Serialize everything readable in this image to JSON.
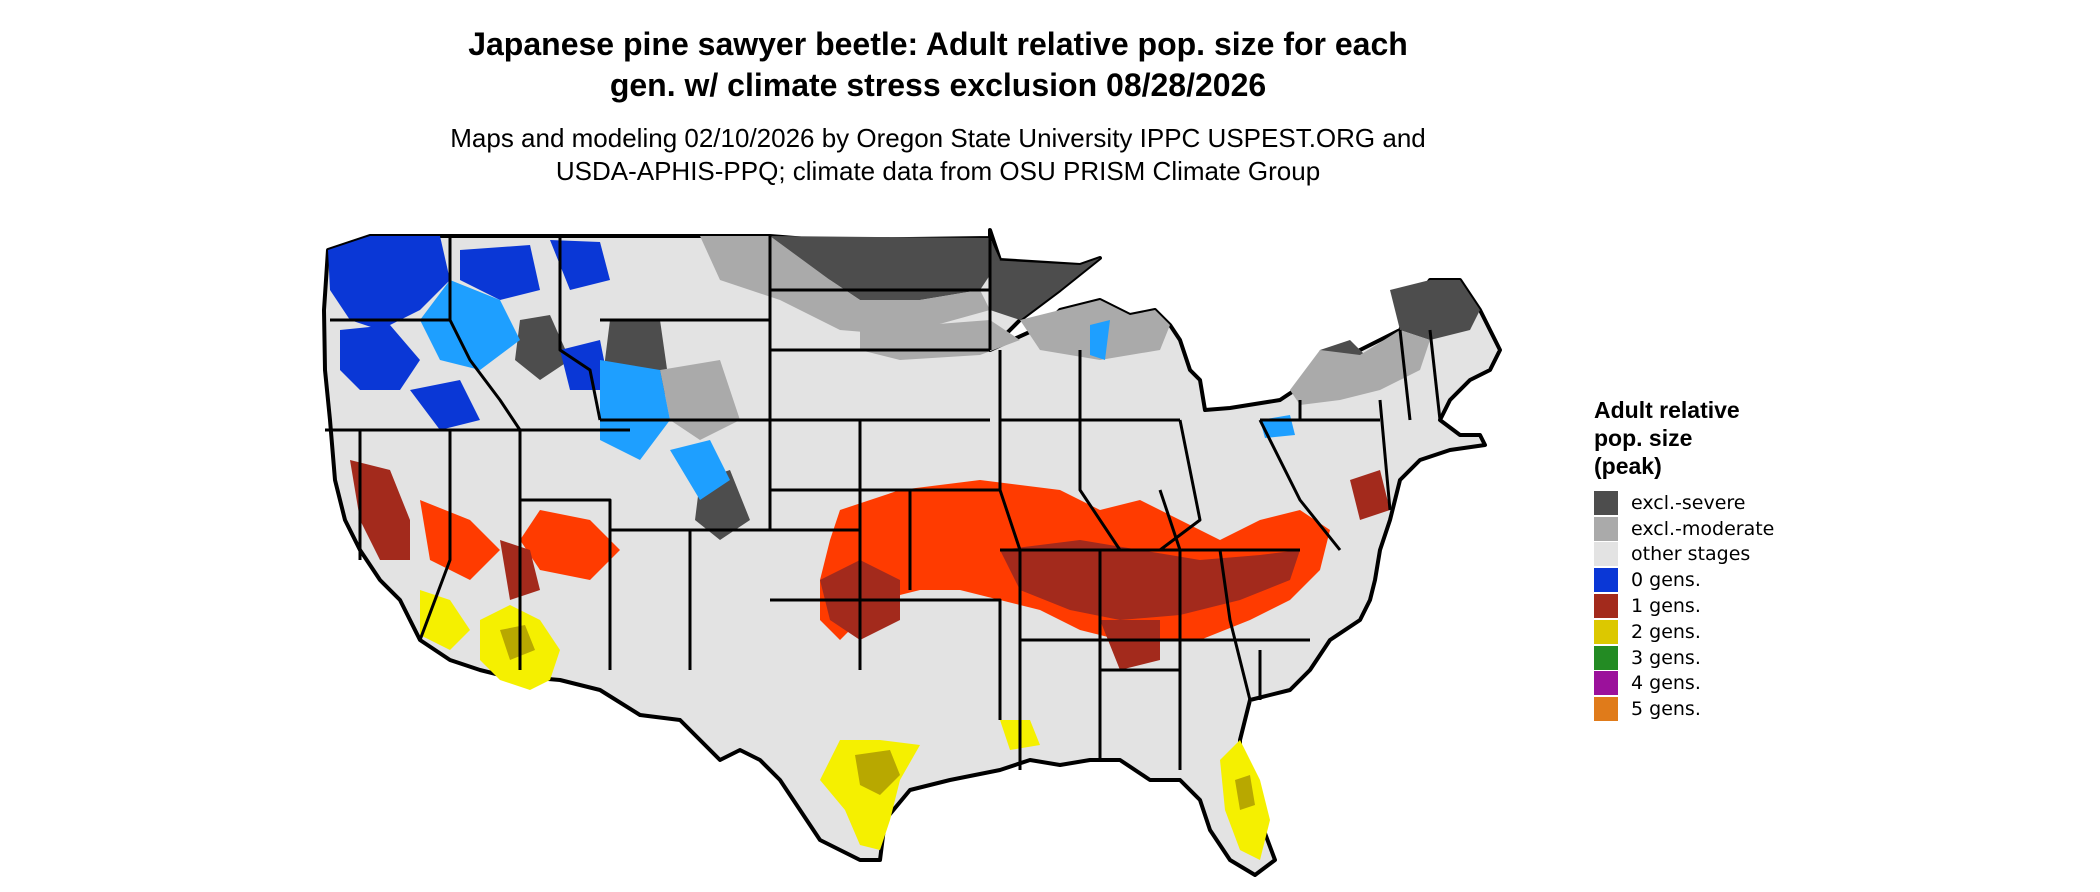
{
  "title": {
    "line1": "Japanese pine sawyer beetle: Adult relative pop. size for each",
    "line2": "gen. w/ climate stress exclusion 08/28/2026"
  },
  "subtitle": {
    "line1": "Maps and modeling 02/10/2026 by Oregon State University IPPC USPEST.ORG and",
    "line2": "USDA-APHIS-PPQ; climate data from OSU PRISM Climate Group"
  },
  "legend": {
    "title_line1": "Adult relative",
    "title_line2": "pop. size",
    "title_line3": "(peak)",
    "items": [
      {
        "label": "excl.-severe",
        "color": "#4d4d4d"
      },
      {
        "label": "excl.-moderate",
        "color": "#aaaaaa"
      },
      {
        "label": "other stages",
        "color": "#e3e3e3"
      },
      {
        "label": "0 gens.",
        "color": "#0a37d6"
      },
      {
        "label": "1 gens.",
        "color": "#a32a1c"
      },
      {
        "label": "2 gens.",
        "color": "#dcc800"
      },
      {
        "label": "3 gens.",
        "color": "#238b23"
      },
      {
        "label": "4 gens.",
        "color": "#9b119b"
      },
      {
        "label": "5 gens.",
        "color": "#e07b1a"
      }
    ]
  },
  "map_colors": {
    "background": "#e3e3e3",
    "boundary": "#000000",
    "light_blue": "#1e9fff",
    "orange_red": "#ff3b00",
    "yellow": "#f5f000"
  }
}
